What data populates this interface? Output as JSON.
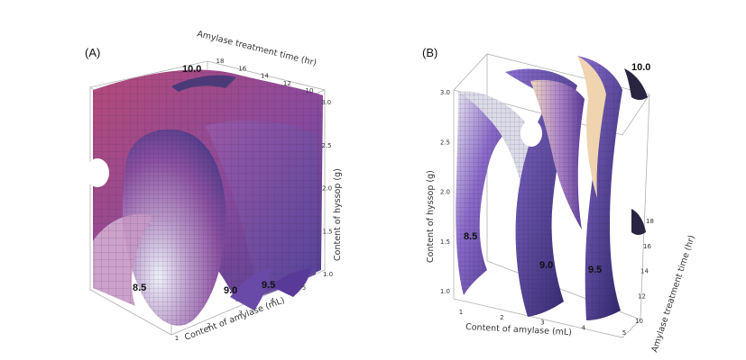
{
  "chart_data": [
    {
      "type": "3d-contour-surface",
      "panel": "(A)",
      "x_axis": {
        "label": "Content of amylase (mL)",
        "ticks": [
          "1",
          "2",
          "3",
          "4",
          "5"
        ],
        "range": [
          1,
          5
        ]
      },
      "y_axis": {
        "label": "Amylase treatment time (hr)",
        "ticks": [
          "10",
          "12",
          "14",
          "16",
          "18"
        ],
        "range": [
          10,
          18
        ]
      },
      "z_axis": {
        "label": "Content of hyssop  (g)",
        "ticks": [
          "1.0",
          "1.5",
          "2.0",
          "2.5",
          "3.0"
        ],
        "range": [
          1.0,
          3.0
        ]
      },
      "isosurfaces": [
        {
          "level": "8.5"
        },
        {
          "level": "9.0"
        },
        {
          "level": "9.5"
        },
        {
          "level": "10.0"
        }
      ],
      "colors": {
        "low": "#e8eef8",
        "mid": "#b070a0",
        "high": "#6a4aa0",
        "box": "#b0b0b0"
      }
    },
    {
      "type": "3d-contour-surface",
      "panel": "(B)",
      "x_axis": {
        "label": "Content of amylase (mL)",
        "ticks": [
          "1",
          "2",
          "3",
          "4",
          "5"
        ],
        "range": [
          1,
          5
        ]
      },
      "y_axis": {
        "label": "Amylase treatment time (hr)",
        "ticks": [
          "10",
          "12",
          "14",
          "16",
          "18"
        ],
        "range": [
          10,
          18
        ]
      },
      "z_axis": {
        "label": "Content of hyssop  (g)",
        "ticks": [
          "1.0",
          "1.5",
          "2.0",
          "2.5",
          "3.0"
        ],
        "range": [
          1.0,
          3.0
        ]
      },
      "isosurfaces": [
        {
          "level": "8.5"
        },
        {
          "level": "9.0"
        },
        {
          "level": "9.5"
        },
        {
          "level": "10.0"
        }
      ],
      "colors": {
        "low": "#e8eef8",
        "mid": "#8a64c8",
        "high": "#3a2a78",
        "tan": "#e8c8a8",
        "box": "#b0b0b0"
      }
    }
  ]
}
